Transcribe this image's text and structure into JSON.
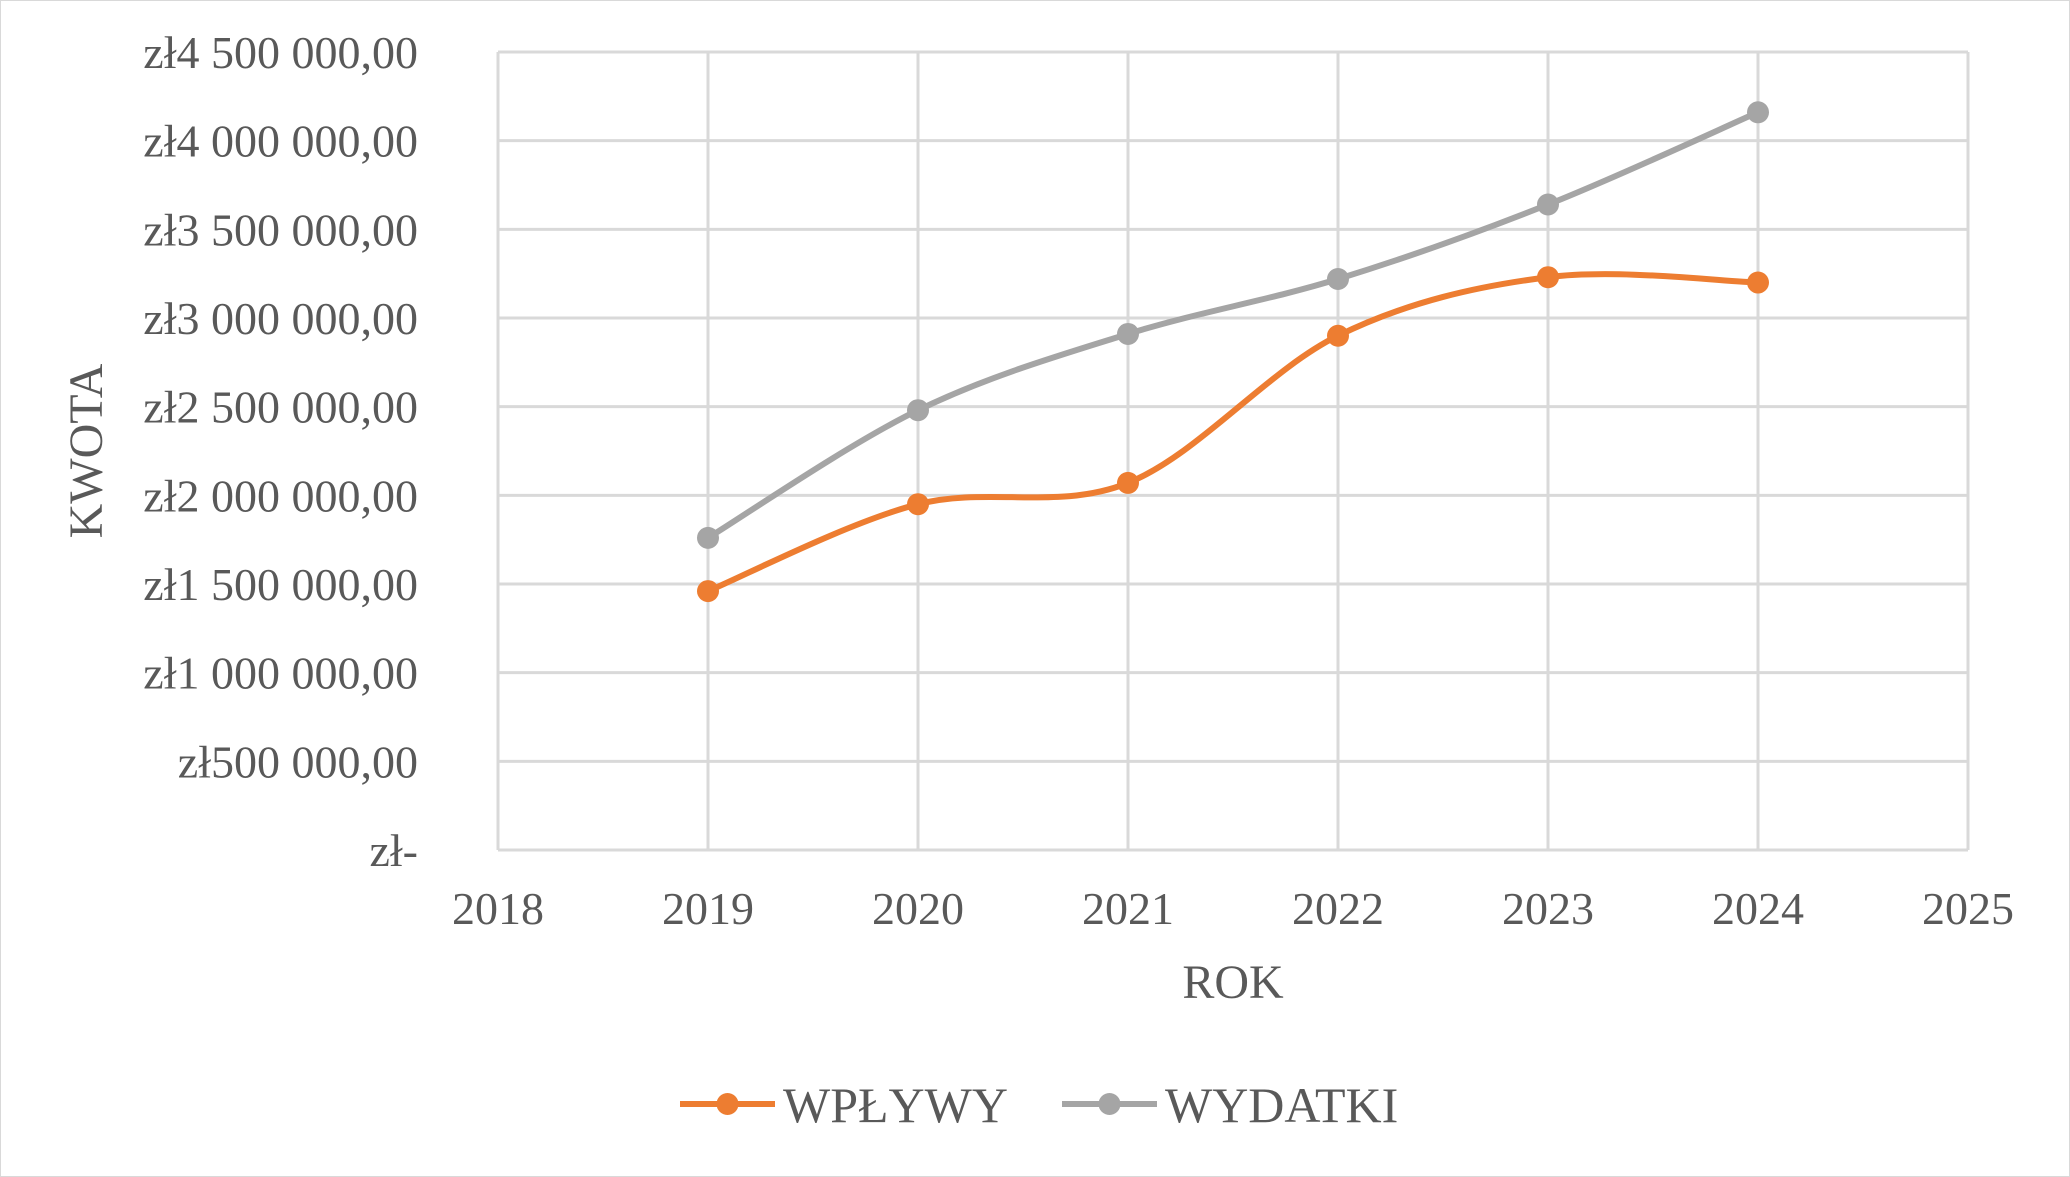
{
  "chart_data": {
    "type": "line",
    "title": "",
    "xlabel": "ROK",
    "ylabel": "KWOTA",
    "xlim": [
      2018,
      2025
    ],
    "ylim": [
      0,
      4500000
    ],
    "x_ticks": [
      2018,
      2019,
      2020,
      2021,
      2022,
      2023,
      2024,
      2025
    ],
    "y_ticks": [
      0,
      500000,
      1000000,
      1500000,
      2000000,
      2500000,
      3000000,
      3500000,
      4000000,
      4500000
    ],
    "y_tick_labels": [
      "zł-",
      "zł500 000,00",
      "zł1 000 000,00",
      "zł1 500 000,00",
      "zł2 000 000,00",
      "zł2 500 000,00",
      "zł3 000 000,00",
      "zł3 500 000,00",
      "zł4 000 000,00",
      "zł4 500 000,00"
    ],
    "x_tick_labels": [
      "2018",
      "2019",
      "2020",
      "2021",
      "2022",
      "2023",
      "2024",
      "2025"
    ],
    "grid": true,
    "smooth": true,
    "legend_position": "bottom",
    "x": [
      2019,
      2020,
      2021,
      2022,
      2023,
      2024
    ],
    "series": [
      {
        "name": "WPŁYWY",
        "color": "#ed7d31",
        "values": [
          1460000,
          1950000,
          2070000,
          2900000,
          3230000,
          3200000
        ]
      },
      {
        "name": "WYDATKI",
        "color": "#a5a5a5",
        "values": [
          1760000,
          2480000,
          2910000,
          3220000,
          3640000,
          4160000
        ]
      }
    ],
    "colors": {
      "grid": "#d9d9d9",
      "text": "#595959"
    }
  }
}
